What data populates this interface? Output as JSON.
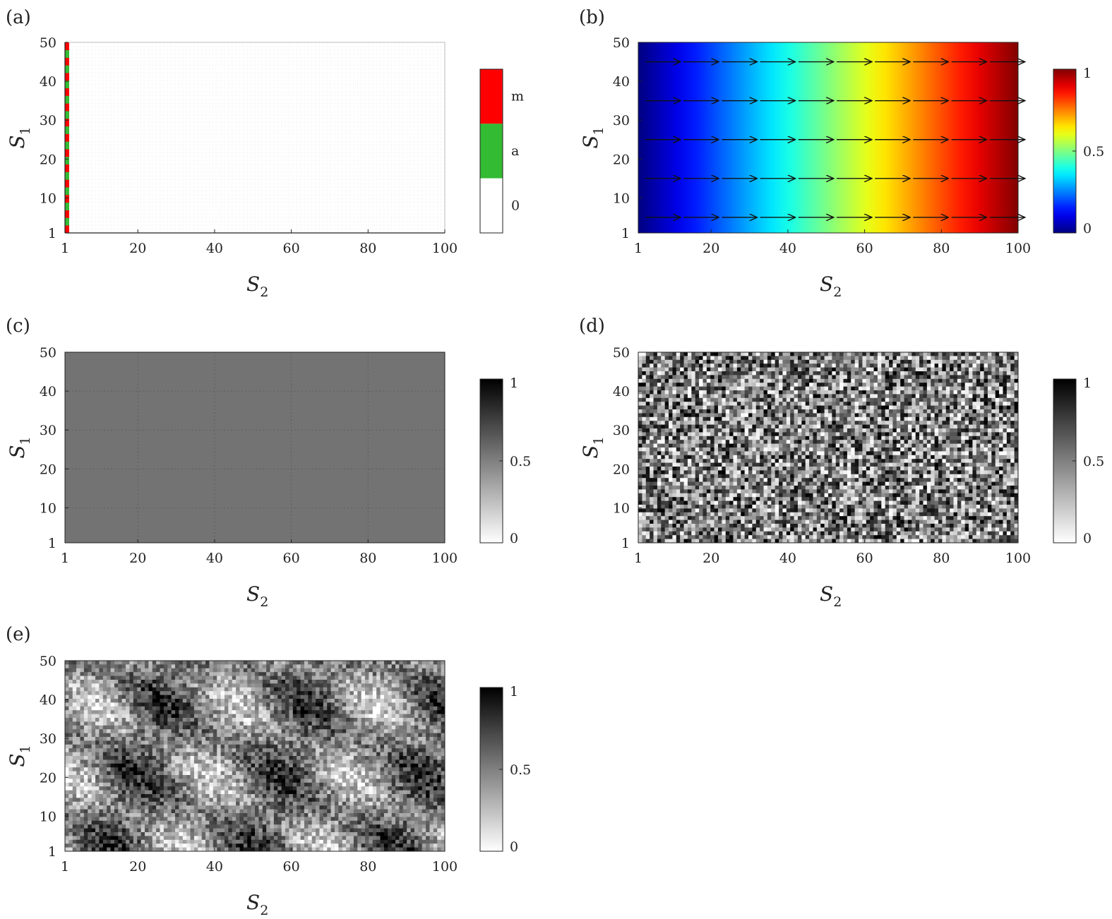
{
  "chart_data": [
    {
      "panel": "(a)",
      "type": "heatmap",
      "xlabel": "S",
      "xlabel_sub": "2",
      "ylabel": "S",
      "ylabel_sub": "1",
      "x_ticks": [
        "1",
        "20",
        "40",
        "60",
        "80",
        "100"
      ],
      "y_ticks": [
        "1",
        "10",
        "20",
        "30",
        "40",
        "50"
      ],
      "xlim": [
        1,
        100
      ],
      "ylim": [
        1,
        50
      ],
      "colorbar": {
        "type": "categorical",
        "labels": [
          "m",
          "a",
          "0"
        ],
        "colors": [
          "#ff0000",
          "#33bb33",
          "#ffffff"
        ]
      },
      "description_values": {
        "column_s2_1_states": "alternating m and a for all S1 rows",
        "rest": "0"
      }
    },
    {
      "panel": "(b)",
      "type": "heatmap",
      "xlabel": "S",
      "xlabel_sub": "2",
      "ylabel": "S",
      "ylabel_sub": "1",
      "x_ticks": [
        "1",
        "20",
        "40",
        "60",
        "80",
        "100"
      ],
      "y_ticks": [
        "1",
        "10",
        "20",
        "30",
        "40",
        "50"
      ],
      "xlim": [
        1,
        100
      ],
      "ylim": [
        1,
        50
      ],
      "gradient": {
        "direction": "x",
        "from": 0,
        "to": 1
      },
      "arrows": {
        "rows": [
          5,
          15,
          25,
          35,
          45
        ],
        "direction": "right"
      },
      "colorbar": {
        "type": "jet",
        "ticks": [
          "0",
          "0.5",
          "1"
        ]
      }
    },
    {
      "panel": "(c)",
      "type": "heatmap",
      "xlabel": "S",
      "xlabel_sub": "2",
      "ylabel": "S",
      "ylabel_sub": "1",
      "x_ticks": [
        "1",
        "20",
        "40",
        "60",
        "80",
        "100"
      ],
      "y_ticks": [
        "1",
        "10",
        "20",
        "30",
        "40",
        "50"
      ],
      "xlim": [
        1,
        100
      ],
      "ylim": [
        1,
        50
      ],
      "uniform_value": 0.55,
      "colorbar": {
        "type": "gray",
        "ticks": [
          "0",
          "0.5",
          "1"
        ]
      }
    },
    {
      "panel": "(d)",
      "type": "heatmap",
      "xlabel": "S",
      "xlabel_sub": "2",
      "ylabel": "S",
      "ylabel_sub": "1",
      "x_ticks": [
        "1",
        "20",
        "40",
        "60",
        "80",
        "100"
      ],
      "y_ticks": [
        "1",
        "10",
        "20",
        "30",
        "40",
        "50"
      ],
      "xlim": [
        1,
        100
      ],
      "ylim": [
        1,
        50
      ],
      "pattern": "random",
      "colorbar": {
        "type": "gray",
        "ticks": [
          "0",
          "0.5",
          "1"
        ]
      }
    },
    {
      "panel": "(e)",
      "type": "heatmap",
      "xlabel": "S",
      "xlabel_sub": "2",
      "ylabel": "S",
      "ylabel_sub": "1",
      "x_ticks": [
        "1",
        "20",
        "40",
        "60",
        "80",
        "100"
      ],
      "y_ticks": [
        "1",
        "10",
        "20",
        "30",
        "40",
        "50"
      ],
      "xlim": [
        1,
        100
      ],
      "ylim": [
        1,
        50
      ],
      "pattern": "noisy-periodic",
      "colorbar": {
        "type": "gray",
        "ticks": [
          "0",
          "0.5",
          "1"
        ]
      }
    }
  ]
}
